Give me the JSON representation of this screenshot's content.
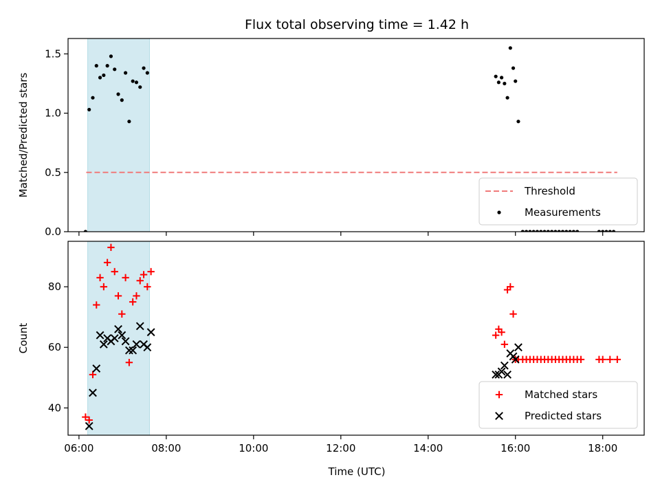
{
  "chart_data": {
    "type": "scatter",
    "title": "Flux total observing time = 1.42 h",
    "xlabel": "Time (UTC)",
    "x_tick_labels": [
      "06:00",
      "08:00",
      "10:00",
      "12:00",
      "14:00",
      "16:00",
      "18:00"
    ],
    "shaded_region": {
      "x_start": "06:12",
      "x_end": "07:37",
      "color": "#d3eaf1"
    },
    "colors": {
      "threshold": "#f07a7a",
      "measurements": "#000000",
      "matched": "#ff0000",
      "predicted": "#000000",
      "shade": "#d3eaf1"
    },
    "panels": [
      {
        "ylabel": "Matched/Predicted stars",
        "ylim": [
          0,
          1.63
        ],
        "y_ticks": [
          {
            "value": 0.0,
            "label": "0.0"
          },
          {
            "value": 0.5,
            "label": "0.5"
          },
          {
            "value": 1.0,
            "label": "1.0"
          },
          {
            "value": 1.5,
            "label": "1.5"
          }
        ],
        "threshold": {
          "name": "Threshold",
          "value": 0.5,
          "x_start": "06:10",
          "x_end": "18:20"
        },
        "series": [
          {
            "name": "Measurements",
            "marker": "dot",
            "x": [
              "06:09",
              "06:14",
              "06:19",
              "06:24",
              "06:29",
              "06:34",
              "06:39",
              "06:44",
              "06:49",
              "06:54",
              "06:59",
              "07:04",
              "07:09",
              "07:14",
              "07:19",
              "07:24",
              "07:29",
              "07:34",
              "15:33",
              "15:37",
              "15:41",
              "15:45",
              "15:49",
              "15:53",
              "15:57",
              "16:00",
              "16:04",
              "16:10",
              "16:15",
              "16:20",
              "16:25",
              "16:30",
              "16:35",
              "16:40",
              "16:45",
              "16:50",
              "16:55",
              "17:00",
              "17:05",
              "17:10",
              "17:15",
              "17:20",
              "17:25",
              "17:55",
              "18:00",
              "18:05",
              "18:10",
              "18:15"
            ],
            "y": [
              0.0,
              1.03,
              1.13,
              1.4,
              1.3,
              1.32,
              1.4,
              1.48,
              1.37,
              1.16,
              1.11,
              1.34,
              0.93,
              1.27,
              1.26,
              1.22,
              1.38,
              1.34,
              1.31,
              1.26,
              1.3,
              1.25,
              1.13,
              1.55,
              1.38,
              1.27,
              0.93,
              0.0,
              0.0,
              0.0,
              0.0,
              0.0,
              0.0,
              0.0,
              0.0,
              0.0,
              0.0,
              0.0,
              0.0,
              0.0,
              0.0,
              0.0,
              0.0,
              0.0,
              0.0,
              0.0,
              0.0,
              0.0
            ]
          }
        ],
        "legend": {
          "position": "lower right",
          "entries": [
            "Threshold",
            "Measurements"
          ]
        }
      },
      {
        "ylabel": "Count",
        "ylim": [
          31,
          95
        ],
        "y_ticks": [
          {
            "value": 40,
            "label": "40"
          },
          {
            "value": 60,
            "label": "60"
          },
          {
            "value": 80,
            "label": "80"
          }
        ],
        "series": [
          {
            "name": "Matched stars",
            "marker": "plus",
            "x": [
              "06:09",
              "06:14",
              "06:19",
              "06:24",
              "06:29",
              "06:34",
              "06:39",
              "06:44",
              "06:49",
              "06:54",
              "06:59",
              "07:04",
              "07:09",
              "07:14",
              "07:19",
              "07:24",
              "07:29",
              "07:34",
              "07:39",
              "15:33",
              "15:37",
              "15:41",
              "15:45",
              "15:49",
              "15:53",
              "15:57",
              "16:00",
              "16:04",
              "16:10",
              "16:15",
              "16:20",
              "16:25",
              "16:30",
              "16:35",
              "16:40",
              "16:45",
              "16:50",
              "16:55",
              "17:00",
              "17:05",
              "17:10",
              "17:15",
              "17:20",
              "17:25",
              "17:30",
              "17:55",
              "18:00",
              "18:10",
              "18:20"
            ],
            "y": [
              37,
              36,
              51,
              74,
              83,
              80,
              88,
              93,
              85,
              77,
              71,
              83,
              55,
              75,
              77,
              82,
              84,
              80,
              85,
              64,
              66,
              65,
              61,
              79,
              80,
              71,
              56,
              56,
              56,
              56,
              56,
              56,
              56,
              56,
              56,
              56,
              56,
              56,
              56,
              56,
              56,
              56,
              56,
              56,
              56,
              56,
              56,
              56,
              56
            ]
          },
          {
            "name": "Predicted stars",
            "marker": "x",
            "x": [
              "06:14",
              "06:19",
              "06:24",
              "06:29",
              "06:34",
              "06:39",
              "06:44",
              "06:49",
              "06:54",
              "06:59",
              "07:04",
              "07:09",
              "07:14",
              "07:19",
              "07:24",
              "07:29",
              "07:34",
              "07:39",
              "15:33",
              "15:37",
              "15:41",
              "15:45",
              "15:49",
              "15:53",
              "15:57",
              "16:00",
              "16:04"
            ],
            "y": [
              34,
              45,
              53,
              64,
              61,
              63,
              62,
              63,
              66,
              64,
              62,
              59,
              59,
              61,
              67,
              61,
              60,
              65,
              51,
              51,
              52,
              54,
              51,
              58,
              57,
              56,
              60
            ]
          }
        ],
        "legend": {
          "position": "lower right",
          "entries": [
            "Matched stars",
            "Predicted stars"
          ]
        }
      }
    ]
  }
}
